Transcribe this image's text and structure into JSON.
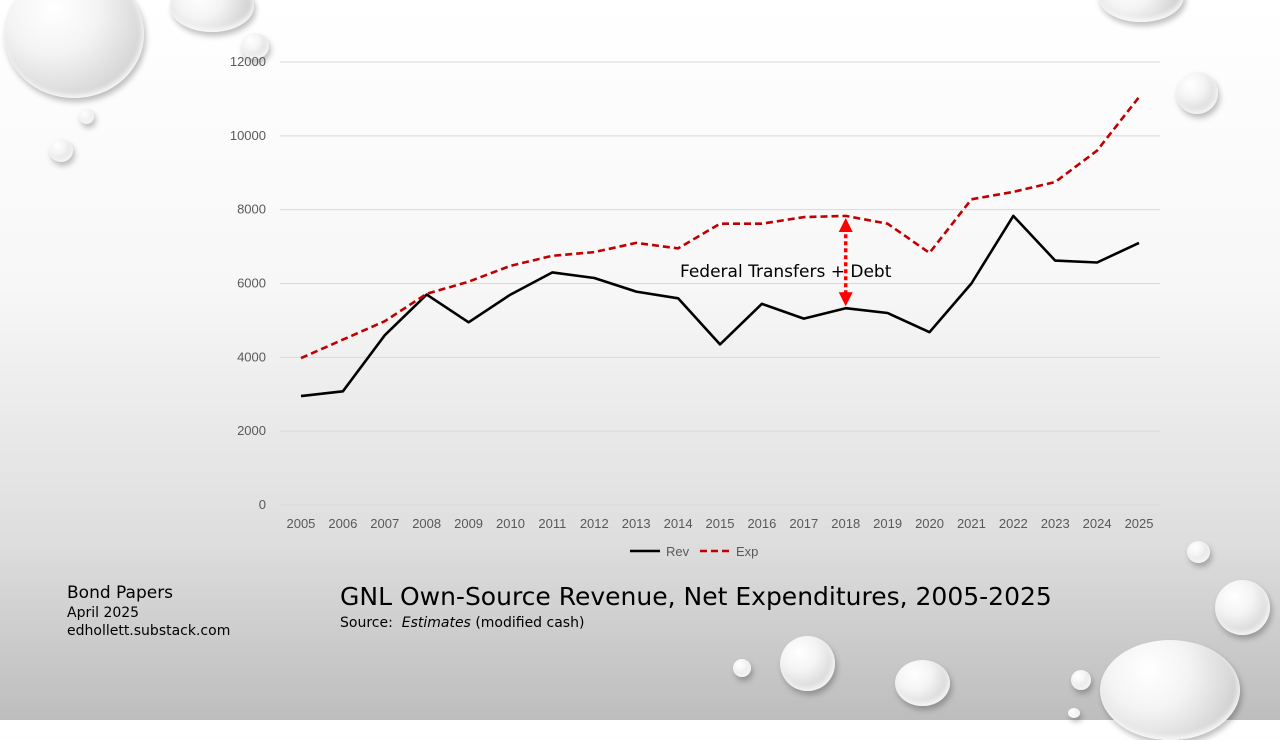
{
  "chart_data": {
    "type": "line",
    "title": "GNL Own-Source Revenue, Net Expenditures, 2005-2025",
    "x": [
      "2005",
      "2006",
      "2007",
      "2008",
      "2009",
      "2010",
      "2011",
      "2012",
      "2013",
      "2014",
      "2015",
      "2016",
      "2017",
      "2018",
      "2019",
      "2020",
      "2021",
      "2022",
      "2023",
      "2024",
      "2025"
    ],
    "ylim": [
      0,
      12000
    ],
    "yticks": [
      0,
      2000,
      4000,
      6000,
      8000,
      10000,
      12000
    ],
    "series": [
      {
        "name": "Rev",
        "color": "#000000",
        "dash": "solid",
        "values": [
          2950,
          3080,
          4600,
          5700,
          4950,
          5700,
          6300,
          6150,
          5780,
          5600,
          4350,
          5450,
          5050,
          5330,
          5200,
          4680,
          6000,
          7830,
          6620,
          6570,
          7100
        ]
      },
      {
        "name": "Exp",
        "color": "#c00000",
        "dash": "dashed",
        "values": [
          3980,
          4480,
          4980,
          5720,
          6050,
          6480,
          6750,
          6850,
          7100,
          6950,
          7620,
          7620,
          7800,
          7830,
          7620,
          6830,
          8280,
          8480,
          8750,
          9600,
          11050
        ]
      }
    ],
    "annotation": {
      "text": "Federal Transfers + Debt",
      "x": "2018",
      "y_from": 5330,
      "y_to": 7830,
      "color": "#ff0000"
    },
    "legend": "bottom",
    "grid": "horizontal"
  },
  "footer": {
    "brand": "Bond Papers",
    "date": "April 2025",
    "site": "edhollett.substack.com"
  },
  "caption": {
    "title": "GNL Own-Source Revenue, Net Expenditures, 2005-2025",
    "source_prefix": "Source:",
    "source_italic": "Estimates",
    "source_suffix": "(modified cash)"
  }
}
